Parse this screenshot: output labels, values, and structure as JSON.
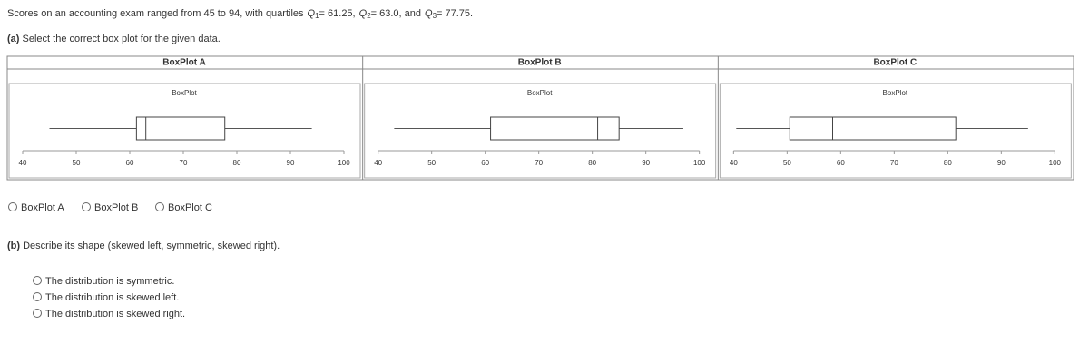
{
  "question": {
    "lead": "Scores on an accounting exam ranged from 45 to 94, with quartiles",
    "quartiles": [
      {
        "symbol": "Q",
        "index": "1",
        "rest": "= 61.25,"
      },
      {
        "symbol": "Q",
        "index": "2",
        "rest": "= 63.0, and"
      },
      {
        "symbol": "Q",
        "index": "3",
        "rest": "= 77.75."
      }
    ]
  },
  "part_a": {
    "label": "(a)",
    "prompt": "Select the correct box plot for the given data.",
    "options": [
      "BoxPlot A",
      "BoxPlot B",
      "BoxPlot C"
    ]
  },
  "boxplots": [
    {
      "title": "BoxPlot A",
      "subtitle": "BoxPlot",
      "xlim": [
        40,
        100
      ],
      "xticks": [
        40,
        50,
        60,
        70,
        80,
        90,
        100
      ],
      "min": 45,
      "q1": 61.25,
      "median": 63,
      "q3": 77.75,
      "max": 94
    },
    {
      "title": "BoxPlot B",
      "subtitle": "BoxPlot",
      "xlim": [
        40,
        100
      ],
      "xticks": [
        40,
        50,
        60,
        70,
        80,
        90,
        100
      ],
      "min": 43,
      "q1": 61,
      "median": 81,
      "q3": 85,
      "max": 97
    },
    {
      "title": "BoxPlot C",
      "subtitle": "BoxPlot",
      "xlim": [
        40,
        100
      ],
      "xticks": [
        40,
        50,
        60,
        70,
        80,
        90,
        100
      ],
      "min": 40.5,
      "q1": 50.5,
      "median": 58.5,
      "q3": 81.5,
      "max": 95
    }
  ],
  "part_b": {
    "label": "(b)",
    "prompt": "Describe its shape (skewed left, symmetric, skewed right).",
    "options": [
      "The distribution is symmetric.",
      "The distribution is skewed left.",
      "The distribution is skewed right."
    ]
  }
}
